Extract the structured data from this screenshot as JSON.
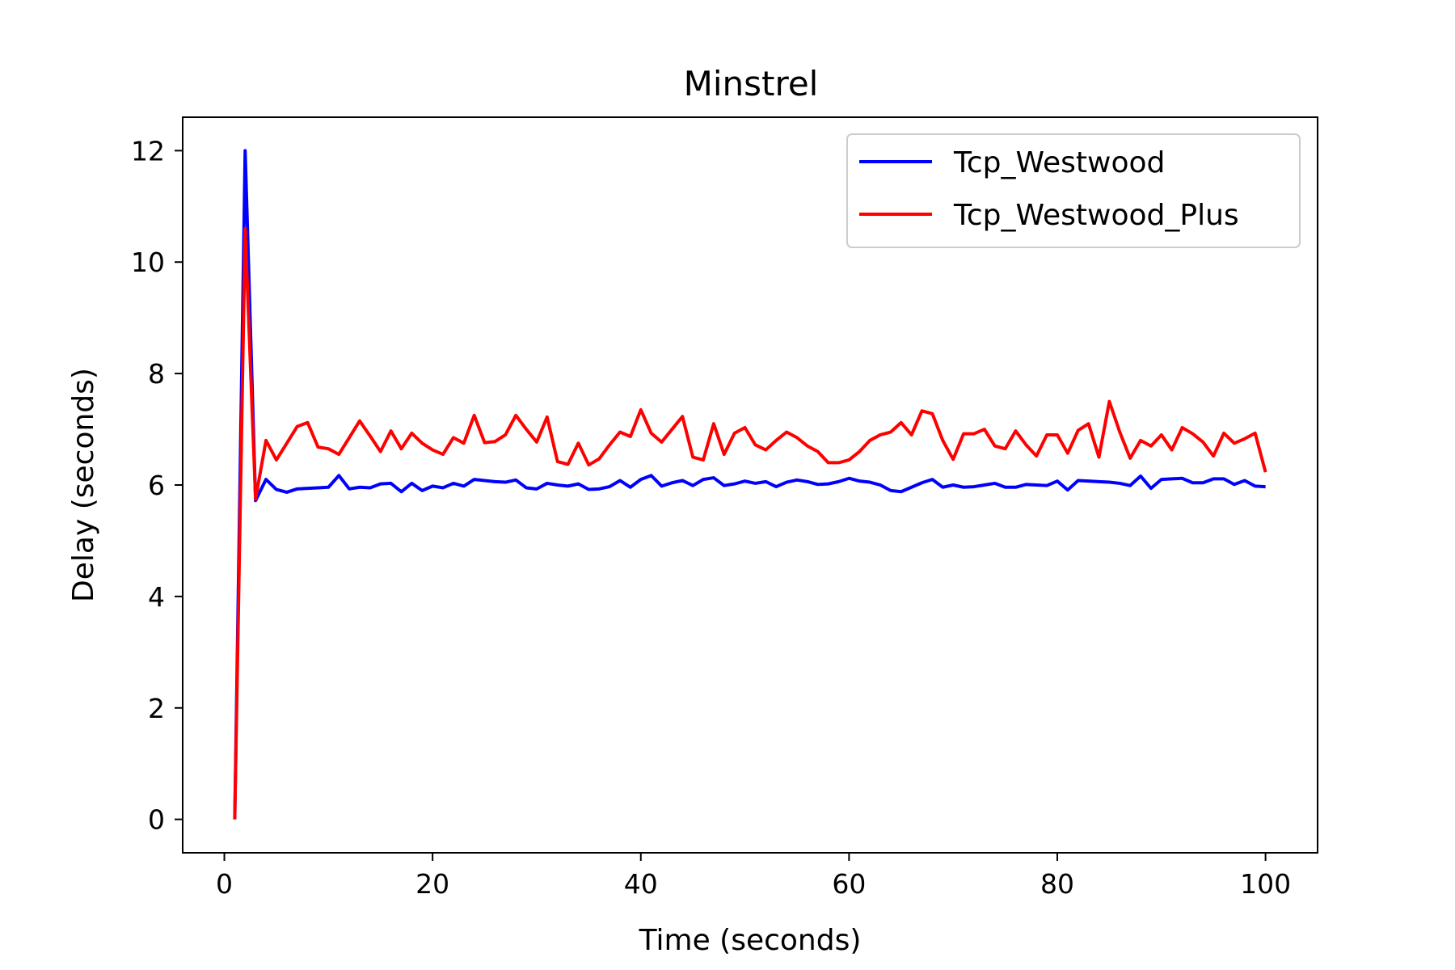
{
  "chart_data": {
    "type": "line",
    "title": "Minstrel",
    "xlabel": "Time (seconds)",
    "ylabel": "Delay (seconds)",
    "xlim": [
      -4,
      105
    ],
    "ylim": [
      -0.6,
      12.6
    ],
    "xticks": [
      0,
      20,
      40,
      60,
      80,
      100
    ],
    "yticks": [
      0,
      2,
      4,
      6,
      8,
      10,
      12
    ],
    "grid": false,
    "legend_position": "top-right",
    "series": [
      {
        "name": "Tcp_Westwood",
        "color": "#0000ff",
        "x": [
          1,
          2,
          3,
          4,
          5,
          6,
          7,
          8,
          9,
          10,
          11,
          12,
          13,
          14,
          15,
          16,
          17,
          18,
          19,
          20,
          21,
          22,
          23,
          24,
          25,
          26,
          27,
          28,
          29,
          30,
          31,
          32,
          33,
          34,
          35,
          36,
          37,
          38,
          39,
          40,
          41,
          42,
          43,
          44,
          45,
          46,
          47,
          48,
          49,
          50,
          51,
          52,
          53,
          54,
          55,
          56,
          57,
          58,
          59,
          60,
          61,
          62,
          63,
          64,
          65,
          66,
          67,
          68,
          69,
          70,
          71,
          72,
          73,
          74,
          75,
          76,
          77,
          78,
          79,
          80,
          81,
          82,
          83,
          84,
          85,
          86,
          87,
          88,
          89,
          90,
          91,
          92,
          93,
          94,
          95,
          96,
          97,
          98,
          99,
          100
        ],
        "y": [
          0,
          12.0,
          5.72,
          6.1,
          5.92,
          5.87,
          5.93,
          5.94,
          5.95,
          5.96,
          6.17,
          5.93,
          5.96,
          5.95,
          6.02,
          6.03,
          5.88,
          6.03,
          5.9,
          5.98,
          5.95,
          6.03,
          5.98,
          6.1,
          6.08,
          6.06,
          6.05,
          6.09,
          5.95,
          5.93,
          6.03,
          6.0,
          5.98,
          6.02,
          5.92,
          5.93,
          5.97,
          6.08,
          5.96,
          6.1,
          6.17,
          5.98,
          6.04,
          6.08,
          5.99,
          6.1,
          6.13,
          5.99,
          6.02,
          6.07,
          6.03,
          6.06,
          5.97,
          6.05,
          6.09,
          6.06,
          6.01,
          6.02,
          6.06,
          6.12,
          6.07,
          6.05,
          6.0,
          5.9,
          5.88,
          5.96,
          6.04,
          6.1,
          5.96,
          6.0,
          5.96,
          5.97,
          6.0,
          6.03,
          5.96,
          5.96,
          6.01,
          6.0,
          5.99,
          6.07,
          5.91,
          6.08,
          6.07,
          6.06,
          6.05,
          6.03,
          5.99,
          6.16,
          5.94,
          6.1,
          6.11,
          6.12,
          6.04,
          6.04,
          6.11,
          6.11,
          6.01,
          6.08,
          5.98,
          5.97
        ]
      },
      {
        "name": "Tcp_Westwood_Plus",
        "color": "#ff0000",
        "x": [
          1,
          2,
          3,
          4,
          5,
          6,
          7,
          8,
          9,
          10,
          11,
          12,
          13,
          14,
          15,
          16,
          17,
          18,
          19,
          20,
          21,
          22,
          23,
          24,
          25,
          26,
          27,
          28,
          29,
          30,
          31,
          32,
          33,
          34,
          35,
          36,
          37,
          38,
          39,
          40,
          41,
          42,
          43,
          44,
          45,
          46,
          47,
          48,
          49,
          50,
          51,
          52,
          53,
          54,
          55,
          56,
          57,
          58,
          59,
          60,
          61,
          62,
          63,
          64,
          65,
          66,
          67,
          68,
          69,
          70,
          71,
          72,
          73,
          74,
          75,
          76,
          77,
          78,
          79,
          80,
          81,
          82,
          83,
          84,
          85,
          86,
          87,
          88,
          89,
          90,
          91,
          92,
          93,
          94,
          95,
          96,
          97,
          98,
          99,
          100
        ],
        "y": [
          0,
          10.6,
          5.75,
          6.8,
          6.45,
          6.75,
          7.05,
          7.12,
          6.68,
          6.65,
          6.55,
          6.85,
          7.15,
          6.88,
          6.6,
          6.97,
          6.65,
          6.93,
          6.75,
          6.63,
          6.55,
          6.85,
          6.75,
          7.25,
          6.76,
          6.78,
          6.9,
          7.25,
          7.0,
          6.77,
          7.22,
          6.42,
          6.37,
          6.75,
          6.36,
          6.47,
          6.72,
          6.95,
          6.87,
          7.35,
          6.93,
          6.77,
          7.0,
          7.23,
          6.5,
          6.45,
          7.1,
          6.55,
          6.93,
          7.03,
          6.72,
          6.63,
          6.8,
          6.95,
          6.85,
          6.7,
          6.6,
          6.4,
          6.4,
          6.45,
          6.6,
          6.8,
          6.9,
          6.95,
          7.12,
          6.9,
          7.33,
          7.28,
          6.8,
          6.46,
          6.92,
          6.92,
          7.0,
          6.7,
          6.65,
          6.97,
          6.72,
          6.52,
          6.9,
          6.9,
          6.57,
          6.98,
          7.1,
          6.5,
          7.5,
          6.95,
          6.48,
          6.8,
          6.7,
          6.9,
          6.63,
          7.03,
          6.92,
          6.77,
          6.52,
          6.93,
          6.75,
          6.83,
          6.93,
          6.23
        ]
      }
    ]
  }
}
